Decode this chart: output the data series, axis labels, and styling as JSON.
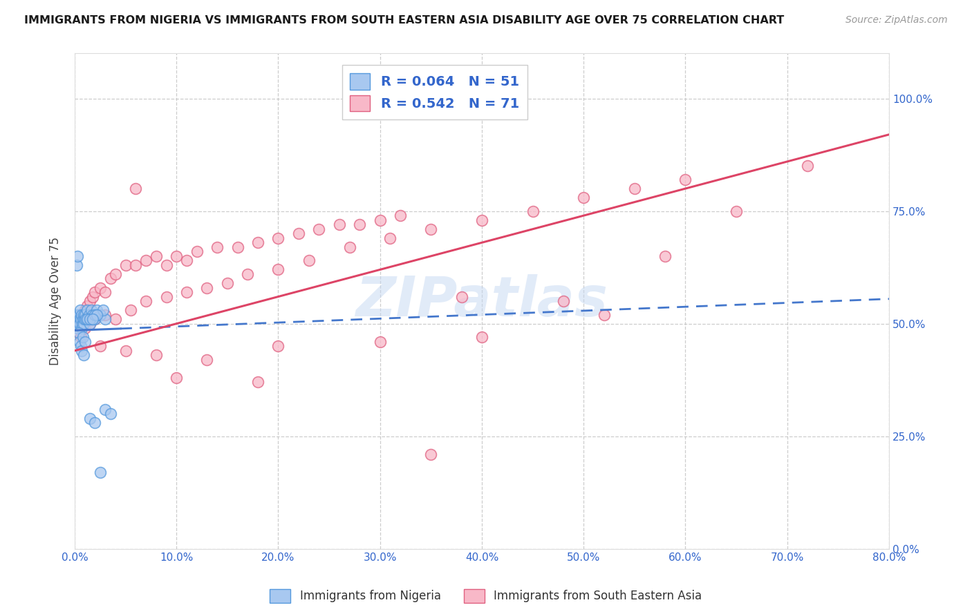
{
  "title": "IMMIGRANTS FROM NIGERIA VS IMMIGRANTS FROM SOUTH EASTERN ASIA DISABILITY AGE OVER 75 CORRELATION CHART",
  "source": "Source: ZipAtlas.com",
  "ylabel_label": "Disability Age Over 75",
  "legend_r1": "R = 0.064",
  "legend_n1": "N = 51",
  "legend_r2": "R = 0.542",
  "legend_n2": "N = 71",
  "color_nigeria_fill": "#a8c8f0",
  "color_nigeria_edge": "#5599dd",
  "color_sea_fill": "#f8b8c8",
  "color_sea_edge": "#e06080",
  "color_trend_nigeria": "#4477cc",
  "color_trend_sea": "#dd4466",
  "color_axis_blue": "#3366cc",
  "watermark": "ZIPatlas",
  "background_color": "#ffffff",
  "grid_color": "#c8c8c8",
  "nigeria_x": [
    0.1,
    0.15,
    0.2,
    0.25,
    0.3,
    0.35,
    0.4,
    0.45,
    0.5,
    0.55,
    0.6,
    0.65,
    0.7,
    0.75,
    0.8,
    0.85,
    0.9,
    0.95,
    1.0,
    1.1,
    1.2,
    1.3,
    1.4,
    1.5,
    1.6,
    1.7,
    1.8,
    2.0,
    2.2,
    2.5,
    0.2,
    0.3,
    0.4,
    0.5,
    0.6,
    0.7,
    0.8,
    0.9,
    1.0,
    1.2,
    1.5,
    2.0,
    2.5,
    3.0,
    3.5,
    1.5,
    2.0,
    3.0,
    2.8,
    2.2,
    1.8
  ],
  "nigeria_y": [
    51,
    50,
    52,
    49,
    51,
    50.5,
    52,
    51,
    50,
    53,
    51,
    49,
    52,
    50,
    51,
    52,
    50,
    51,
    52,
    51,
    53,
    51,
    52,
    50,
    53,
    51,
    52,
    51,
    53,
    52,
    63,
    65,
    48,
    46,
    45,
    44,
    47,
    43,
    46,
    51,
    29,
    28,
    17,
    31,
    30,
    51,
    52,
    51,
    53,
    52,
    51
  ],
  "sea_x": [
    0.3,
    0.5,
    0.8,
    1.0,
    1.2,
    1.5,
    1.8,
    2.0,
    2.5,
    3.0,
    3.5,
    4.0,
    5.0,
    6.0,
    7.0,
    8.0,
    9.0,
    10.0,
    11.0,
    12.0,
    14.0,
    16.0,
    18.0,
    20.0,
    22.0,
    24.0,
    26.0,
    28.0,
    30.0,
    32.0,
    0.4,
    0.6,
    1.0,
    1.5,
    2.0,
    3.0,
    4.0,
    5.5,
    7.0,
    9.0,
    11.0,
    13.0,
    15.0,
    17.0,
    20.0,
    23.0,
    27.0,
    31.0,
    35.0,
    40.0,
    45.0,
    50.0,
    55.0,
    60.0,
    2.5,
    5.0,
    8.0,
    13.0,
    20.0,
    30.0,
    40.0,
    52.0,
    65.0,
    72.0,
    6.0,
    10.0,
    18.0,
    35.0,
    48.0,
    58.0,
    38.0
  ],
  "sea_y": [
    50,
    52,
    51,
    53,
    54,
    55,
    56,
    57,
    58,
    57,
    60,
    61,
    63,
    63,
    64,
    65,
    63,
    65,
    64,
    66,
    67,
    67,
    68,
    69,
    70,
    71,
    72,
    72,
    73,
    74,
    48,
    47,
    49,
    50,
    51,
    52,
    51,
    53,
    55,
    56,
    57,
    58,
    59,
    61,
    62,
    64,
    67,
    69,
    71,
    73,
    75,
    78,
    80,
    82,
    45,
    44,
    43,
    42,
    45,
    46,
    47,
    52,
    75,
    85,
    80,
    38,
    37,
    21,
    55,
    65,
    56
  ],
  "nigeria_trend_x0": 0.0,
  "nigeria_trend_y0": 48.5,
  "nigeria_trend_x1": 80.0,
  "nigeria_trend_y1": 55.5,
  "sea_trend_x0": 0.0,
  "sea_trend_y0": 44.0,
  "sea_trend_x1": 80.0,
  "sea_trend_y1": 92.0,
  "nigeria_solid_end": 4.5,
  "xlim": [
    0,
    80
  ],
  "ylim": [
    0,
    110
  ],
  "xticks": [
    0,
    10,
    20,
    30,
    40,
    50,
    60,
    70,
    80
  ],
  "yticks": [
    0,
    25,
    50,
    75,
    100
  ]
}
